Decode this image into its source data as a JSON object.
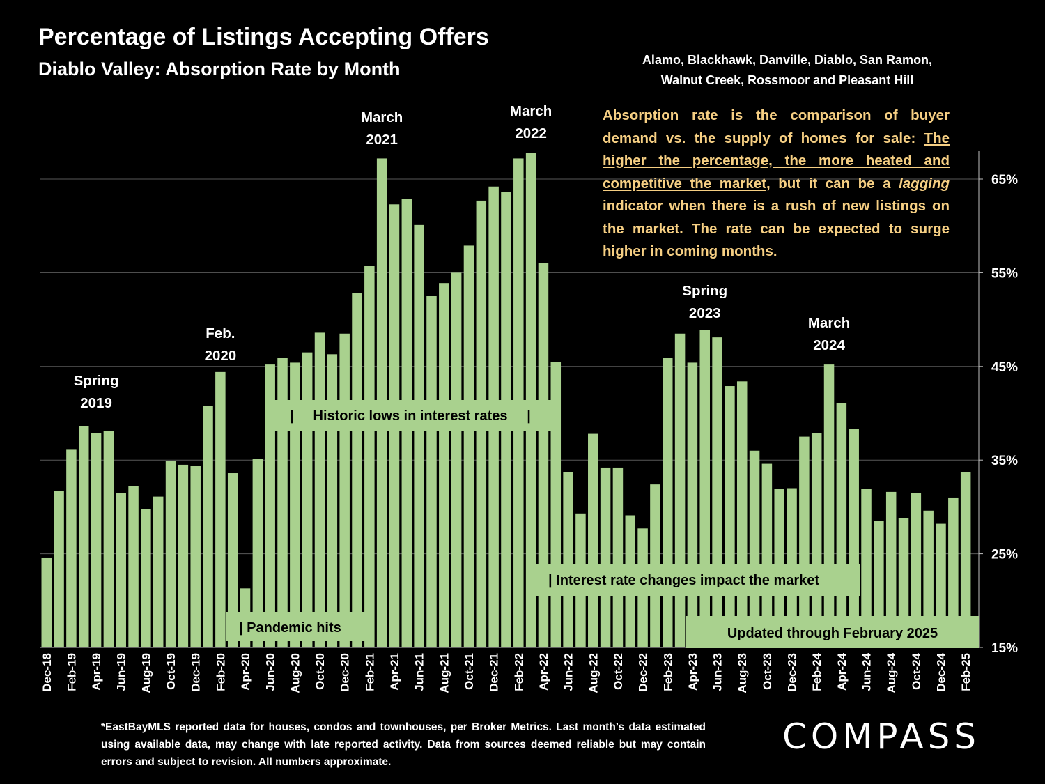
{
  "header": {
    "title": "Percentage of Listings Accepting Offers",
    "subtitle": "Diablo Valley:  Absorption Rate by Month",
    "region_line1": "Alamo, Blackhawk, Danville, Diablo, San Ramon,",
    "region_line2": "Walnut Creek, Rossmoor and Pleasant Hill"
  },
  "explanation": {
    "part1": "Absorption rate is the comparison of buyer demand vs. the supply of homes for sale: ",
    "part2_underlined": "The higher the percentage, the more heated and competitive the market,",
    "part3": " but it can be a ",
    "part4_italic": "lagging",
    "part5": " indicator when there is a rush of new listings on the market. The rate can be expected to surge higher in coming months."
  },
  "footnote": "*EastBayMLS reported data for houses, condos and townhouses, per Broker Metrics. Last month’s data estimated using available data, may change with late reported activity. Data from sources deemed reliable but may contain errors and subject to revision. All numbers approximate.",
  "logo": "COMPASS",
  "colors": {
    "bar": "#a9d18e",
    "background": "#000000",
    "note_text": "#f6cf83",
    "box_bg": "#a9d18e"
  },
  "chart_data": {
    "type": "bar",
    "title": "Percentage of Listings Accepting Offers",
    "xlabel": "",
    "ylabel": "",
    "ylim": [
      15,
      68
    ],
    "y_ticks": [
      15,
      25,
      35,
      45,
      55,
      65
    ],
    "y_tick_labels": [
      "15%",
      "25%",
      "35%",
      "45%",
      "55%",
      "65%"
    ],
    "grid": true,
    "y_axis_side": "right",
    "categories": [
      "Dec-18",
      "Jan-19",
      "Feb-19",
      "Mar-19",
      "Apr-19",
      "May-19",
      "Jun-19",
      "Jul-19",
      "Aug-19",
      "Sep-19",
      "Oct-19",
      "Nov-19",
      "Dec-19",
      "Jan-20",
      "Feb-20",
      "Mar-20",
      "Apr-20",
      "May-20",
      "Jun-20",
      "Jul-20",
      "Aug-20",
      "Sep-20",
      "Oct-20",
      "Nov-20",
      "Dec-20",
      "Jan-21",
      "Feb-21",
      "Mar-21",
      "Apr-21",
      "May-21",
      "Jun-21",
      "Jul-21",
      "Aug-21",
      "Sep-21",
      "Oct-21",
      "Nov-21",
      "Dec-21",
      "Jan-22",
      "Feb-22",
      "Mar-22",
      "Apr-22",
      "May-22",
      "Jun-22",
      "Jul-22",
      "Aug-22",
      "Sep-22",
      "Oct-22",
      "Nov-22",
      "Dec-22",
      "Jan-23",
      "Feb-23",
      "Mar-23",
      "Apr-23",
      "May-23",
      "Jun-23",
      "Jul-23",
      "Aug-23",
      "Sep-23",
      "Oct-23",
      "Nov-23",
      "Dec-23",
      "Jan-24",
      "Feb-24",
      "Mar-24",
      "Apr-24",
      "May-24",
      "Jun-24",
      "Jul-24",
      "Aug-24",
      "Sep-24",
      "Oct-24",
      "Nov-24",
      "Dec-24",
      "Jan-25",
      "Feb-25"
    ],
    "x_tick_labels": [
      "Dec-18",
      "Feb-19",
      "Apr-19",
      "Jun-19",
      "Aug-19",
      "Oct-19",
      "Dec-19",
      "Feb-20",
      "Apr-20",
      "Jun-20",
      "Aug-20",
      "Oct-20",
      "Dec-20",
      "Feb-21",
      "Apr-21",
      "Jun-21",
      "Aug-21",
      "Oct-21",
      "Dec-21",
      "Feb-22",
      "Apr-22",
      "Jun-22",
      "Aug-22",
      "Oct-22",
      "Dec-22",
      "Feb-23",
      "Apr-23",
      "Jun-23",
      "Aug-23",
      "Oct-23",
      "Dec-23",
      "Feb-24",
      "Apr-24",
      "Jun-24",
      "Aug-24",
      "Oct-24",
      "Dec-24",
      "Feb-25"
    ],
    "values": [
      24.6,
      31.7,
      36.1,
      38.6,
      37.9,
      38.1,
      31.5,
      32.2,
      29.8,
      31.1,
      34.9,
      34.5,
      34.4,
      40.8,
      44.4,
      33.6,
      21.3,
      35.1,
      45.2,
      45.9,
      45.4,
      46.5,
      48.6,
      46.3,
      48.5,
      52.8,
      55.7,
      67.2,
      62.3,
      62.9,
      60.1,
      52.5,
      53.9,
      55.0,
      57.9,
      62.7,
      64.2,
      63.6,
      67.2,
      67.8,
      56.0,
      45.5,
      33.7,
      29.3,
      37.8,
      34.2,
      34.2,
      29.1,
      27.7,
      32.4,
      45.9,
      48.5,
      45.4,
      48.9,
      48.1,
      42.9,
      43.4,
      36.0,
      34.6,
      31.9,
      32.0,
      37.5,
      37.9,
      45.2,
      41.1,
      38.3,
      31.9,
      28.5,
      31.6,
      28.8,
      31.5,
      29.6,
      28.2,
      31.0,
      33.7
    ],
    "annotations": [
      {
        "text_line1": "Spring",
        "text_line2": "2019",
        "category": "Apr-19"
      },
      {
        "text_line1": "Feb.",
        "text_line2": "2020",
        "category": "Feb-20"
      },
      {
        "text_line1": "March",
        "text_line2": "2021",
        "category": "Mar-21"
      },
      {
        "text_line1": "March",
        "text_line2": "2022",
        "category": "Mar-22"
      },
      {
        "text_line1": "Spring",
        "text_line2": "2023",
        "category": "May-23"
      },
      {
        "text_line1": "March",
        "text_line2": "2024",
        "category": "Mar-24"
      }
    ],
    "callouts": [
      {
        "text": "|     Historic lows in interest rates     |"
      },
      {
        "text": "| Pandemic hits"
      },
      {
        "text": "| Interest rate changes impact the market"
      },
      {
        "text": "Updated through February 2025"
      }
    ]
  }
}
